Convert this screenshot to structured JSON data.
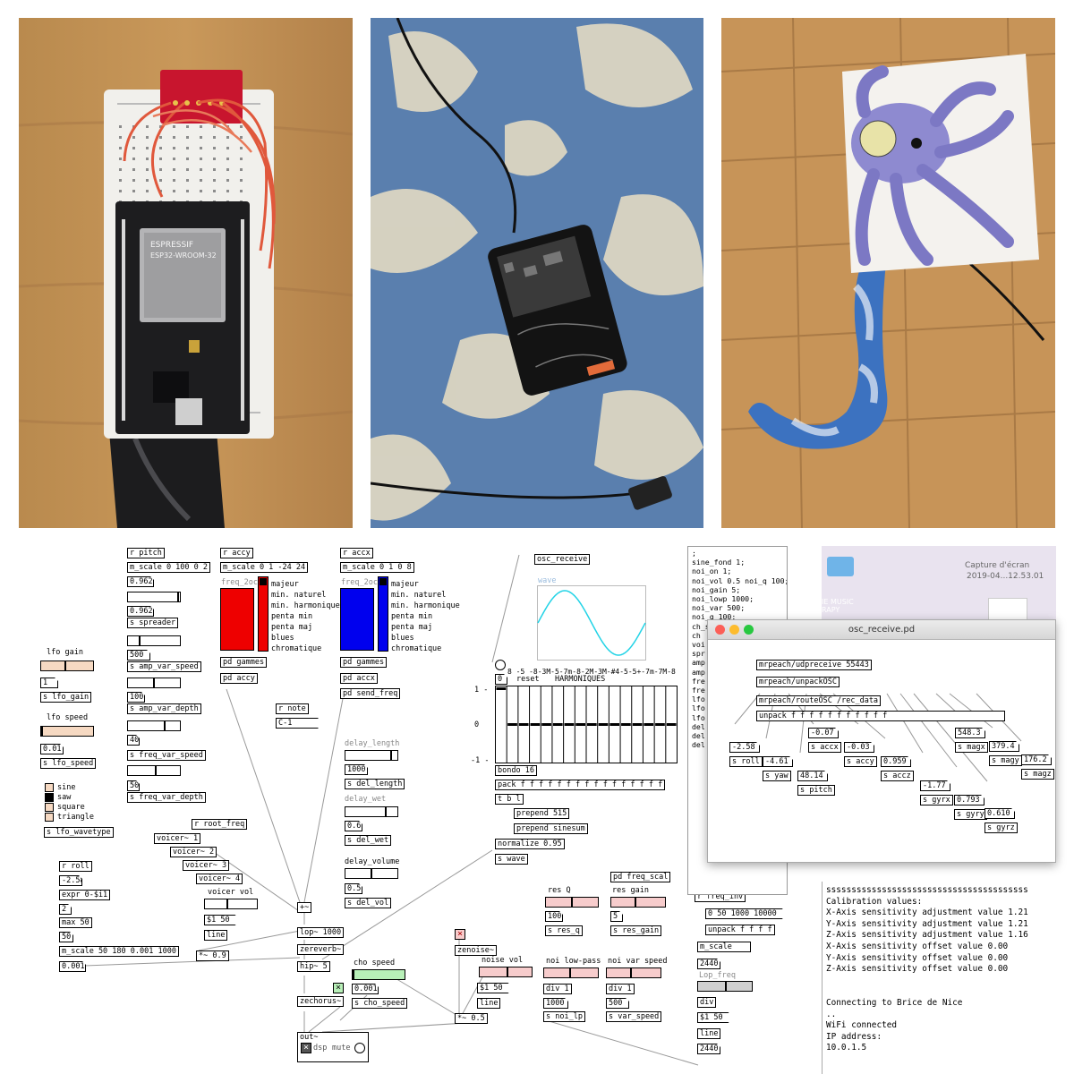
{
  "photos": [
    {
      "subject": "breadboard with ESP32 board",
      "chip_line1": "ESPRESSIF",
      "chip_line2": "ESP32-WROOM-32"
    },
    {
      "subject": "taped board on blue towel"
    },
    {
      "subject": "octopus drawing with tentacle"
    }
  ],
  "patch": {
    "lfo": {
      "gain_label": "lfo gain",
      "gain_val": "1",
      "gain_send": "s lfo_gain",
      "speed_label": "lfo speed",
      "speed_val": "0.01",
      "speed_send": "s lfo_speed",
      "waves": [
        "sine",
        "saw",
        "square",
        "triangle"
      ],
      "wave_send": "s lfo_wavetype"
    },
    "pitch_col": {
      "recv": "r pitch",
      "scale": "m_scale 0 100 0 2",
      "n1": "0.962",
      "n2": "0.962",
      "send1": "s spreader",
      "n3": "500",
      "send2": "s amp_var_speed",
      "n4": "100",
      "send3": "s amp_var_depth",
      "n5": "40",
      "send4": "s freq_var_speed",
      "n6": "50",
      "send5": "s freq_var_depth"
    },
    "accy_col": {
      "recv": "r accy",
      "scale": "m_scale 0 1 -24 24",
      "title": "freq_2oct",
      "scales": [
        "majeur",
        "min. naturel",
        "min. harmonique",
        "penta min",
        "penta maj",
        "blues",
        "chromatique"
      ],
      "gammes": "pd gammes",
      "pd": "pd accy"
    },
    "accx_col": {
      "recv": "r accx",
      "scale": "m_scale 0 1 0 8",
      "title": "freq_2oct",
      "scales": [
        "majeur",
        "min. naturel",
        "min. harmonique",
        "penta min",
        "penta maj",
        "blues",
        "chromatique"
      ],
      "gammes": "pd gammes",
      "pd": "pd accx",
      "send": "pd send_freq"
    },
    "note": {
      "recv": "r note",
      "val": "C-1"
    },
    "delay": {
      "length_label": "delay_length",
      "length_val": "1000",
      "length_send": "s del_length",
      "wet_label": "delay_wet",
      "wet_val": "0.6",
      "wet_send": "s del_wet",
      "vol_label": "delay_volume",
      "vol_val": "0.5",
      "vol_send": "s del_vol"
    },
    "roll": {
      "recv": "r roll",
      "val": "-2.58",
      "expr": "expr 0-$i1",
      "n1": "2",
      "max": "max 50",
      "n2": "50",
      "scale": "m_scale 50 180 0.001 1000",
      "n3": "0.001"
    },
    "voices": {
      "recv": "r root_freq",
      "v1": "voicer~ 1",
      "v2": "voicer~ 2",
      "v3": "voicer~ 3",
      "v4": "voicer~ 4",
      "vol_label": "voicer vol",
      "vol_msg": "$1 50",
      "line": "line",
      "mul": "*~ 0.9"
    },
    "chain": {
      "add": "+~",
      "lop": "lop~ 1000",
      "rev": "zereverb~",
      "hip": "hip~ 5",
      "cho": "zechorus~",
      "out": "out~",
      "dsp": "dsp",
      "mute": "mute"
    },
    "cho": {
      "label": "cho speed",
      "val": "0.001",
      "send": "s cho_speed"
    },
    "osc": {
      "recv": "osc_receive",
      "wave": "wave"
    },
    "harm": {
      "header": "8 -5 -8-3M-5-7m-8-2M-3M-#4-5-5+-7m-7M-8",
      "reset": "reset",
      "title": "HARMONIQUES",
      "zero": "0",
      "ymax": "1 -",
      "ymid": "0",
      "ymin": "-1 -",
      "bondo": "bondo 16",
      "pack": "pack f f f f f f f f f f f f f f f f",
      "tbl": "t b l",
      "p1": "prepend 515",
      "p2": "prepend sinesum",
      "norm": "normalize 0.95",
      "wave": "s wave"
    },
    "noise": {
      "zen": "zenoise~",
      "vol_label": "noise vol",
      "vol_msg": "$1 50",
      "line": "line",
      "mul": "*~ 0.5",
      "resq_label": "res Q",
      "resq_val": "100",
      "resq_send": "s res_q",
      "resg_label": "res gain",
      "resg_val": "5",
      "resg_send": "s res_gain",
      "pd_scal": "pd freq_scal",
      "lp_label": "noi low-pass",
      "lp_div": "div 1",
      "lp_val": "1000",
      "lp_send": "s noi_lp",
      "var_label": "noi var speed",
      "var_div": "div 1",
      "var_val": "500",
      "var_send": "s var_speed"
    },
    "finv": {
      "recv": "r freq_inv",
      "msg": "0 50 1000 10000",
      "unpack": "unpack f f f f",
      "scale": "m_scale",
      "val": "2440",
      "lop_label": "Lop_freq",
      "div": "div",
      "msg2": "$1 50",
      "line": "line",
      "val2": "2440"
    },
    "side_text": ";\nsine_fond 1;\nnoi_on 1;\nnoi_vol 0.5 noi_q 100;\nnoi_gain 5;\nnoi_lowp 1000;\nnoi_var 500;\nnoi_q 100;\nch_sped 0.001;\nch\nvoi\nspr\namp\namp\nfre\nfre\nlfo\nlfo\nlfo\ndel\ndel\ndel"
  },
  "desktop": {
    "label1": "Capture d'écran",
    "label2": "2019-04...12.53.01",
    "folder": "IE MUSIC\nRAPY"
  },
  "osc_window": {
    "title": "osc_receive.pd",
    "udp": "mrpeach/udpreceive 55443",
    "unpackosc": "mrpeach/unpackOSC",
    "route": "mrpeach/routeOSC /rec_data",
    "unpack": "unpack f f f f f f f f f f f",
    "roll_val": "-2.58",
    "roll": "s roll",
    "yaw_val": "-4.61",
    "yaw": "s yaw",
    "accx_val": "-0.07",
    "accx": "s accx",
    "pitch_val": "48.14",
    "pitch": "s pitch",
    "accy_val": "-0.03",
    "accy": "s accy",
    "accz_val": "0.959",
    "accz": "s accz",
    "gyrx_val": "-1.77",
    "gyrx": "s gyrx",
    "gyry_val": "0.793",
    "gyry": "s gyry",
    "gyrz_val": "0.610",
    "gyrz": "s gyrz",
    "magx_val": "548.3",
    "magx": "s magx",
    "magy_val": "379.4",
    "magy": "s magy",
    "magz_val": "176.2",
    "magz": "s magz"
  },
  "console": "ssssssssssssssssssssssssssssssssssssssss\nCalibration values:\nX-Axis sensitivity adjustment value 1.21\nY-Axis sensitivity adjustment value 1.21\nZ-Axis sensitivity adjustment value 1.16\nX-Axis sensitivity offset value 0.00\nY-Axis sensitivity offset value 0.00\nZ-Axis sensitivity offset value 0.00\n\n\nConnecting to Brice de Nice\n..\nWiFi connected\nIP address:\n10.0.1.5",
  "colors": {
    "red": "#ee0000",
    "blue": "#0000ee",
    "orange_slider": "#f6d9c2",
    "pink_slider": "#f7cccc",
    "green_slider": "#b8f0b8",
    "wave": "#22d3e6"
  }
}
